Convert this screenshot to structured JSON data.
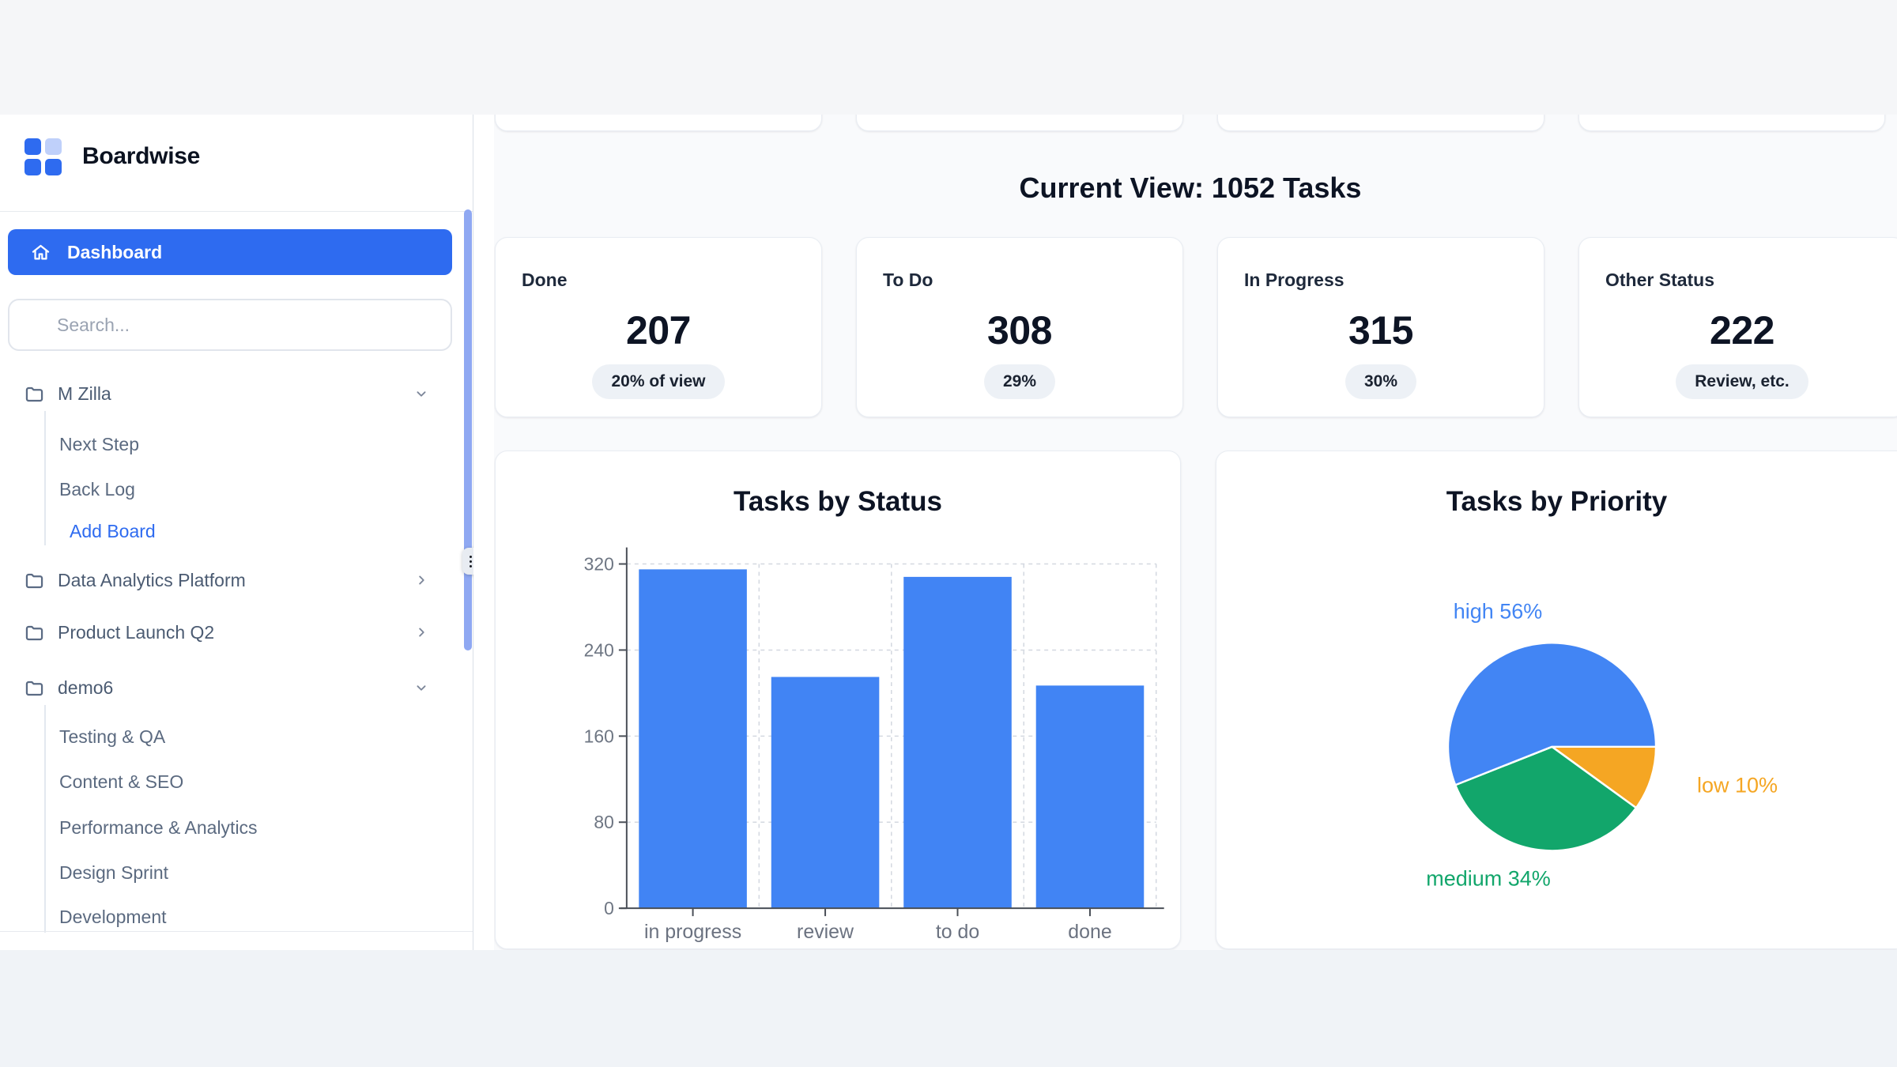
{
  "brand": {
    "name": "Boardwise"
  },
  "sidebar": {
    "dashboard_label": "Dashboard",
    "search_placeholder": "Search...",
    "tree": [
      {
        "label": "M Zilla",
        "type": "folder",
        "chevron": "down"
      },
      {
        "label": "Next Step",
        "type": "board"
      },
      {
        "label": "Back Log",
        "type": "board"
      },
      {
        "label": "Add Board",
        "type": "action"
      },
      {
        "label": "Data Analytics Platform",
        "type": "folder",
        "chevron": "right"
      },
      {
        "label": "Product Launch Q2",
        "type": "folder",
        "chevron": "right"
      },
      {
        "label": "demo6",
        "type": "folder",
        "chevron": "down"
      },
      {
        "label": "Testing & QA",
        "type": "board"
      },
      {
        "label": "Content & SEO",
        "type": "board"
      },
      {
        "label": "Performance & Analytics",
        "type": "board"
      },
      {
        "label": "Design Sprint",
        "type": "board"
      },
      {
        "label": "Development",
        "type": "board"
      }
    ]
  },
  "header": {
    "title": "Current View: 1052 Tasks"
  },
  "stats": [
    {
      "label": "Done",
      "value": "207",
      "badge": "20% of view"
    },
    {
      "label": "To Do",
      "value": "308",
      "badge": "29%"
    },
    {
      "label": "In Progress",
      "value": "315",
      "badge": "30%"
    },
    {
      "label": "Other Status",
      "value": "222",
      "badge": "Review, etc."
    }
  ],
  "chart_data": [
    {
      "type": "bar",
      "title": "Tasks by Status",
      "categories": [
        "in progress",
        "review",
        "to do",
        "done"
      ],
      "values": [
        315,
        215,
        308,
        207
      ],
      "xlabel": "",
      "ylabel": "",
      "ylim": [
        0,
        320
      ],
      "yticks": [
        0,
        80,
        160,
        240,
        320
      ],
      "grid": true,
      "legend": false,
      "bar_color": "#4184f4",
      "grid_color": "#d3d8e0",
      "axis_color": "#4a4f57"
    },
    {
      "type": "pie",
      "title": "Tasks by Priority",
      "start_angle_deg": 0,
      "direction": "clockwise",
      "slices": [
        {
          "name": "low",
          "pct": 10,
          "color": "#f5a623",
          "display": "low 10%"
        },
        {
          "name": "medium",
          "pct": 34,
          "color": "#12a66b",
          "display": "medium 34%"
        },
        {
          "name": "high",
          "pct": 56,
          "color": "#4285f4",
          "display": "high 56%"
        }
      ],
      "legend": false
    }
  ],
  "colors": {
    "accent_blue": "#2e6bf0",
    "scrollbar_thumb": "#8fa8f2",
    "page_band_top": "#f5f6f8",
    "page_band_bottom": "#f0f3f7",
    "main_bg": "#f9fafc"
  }
}
